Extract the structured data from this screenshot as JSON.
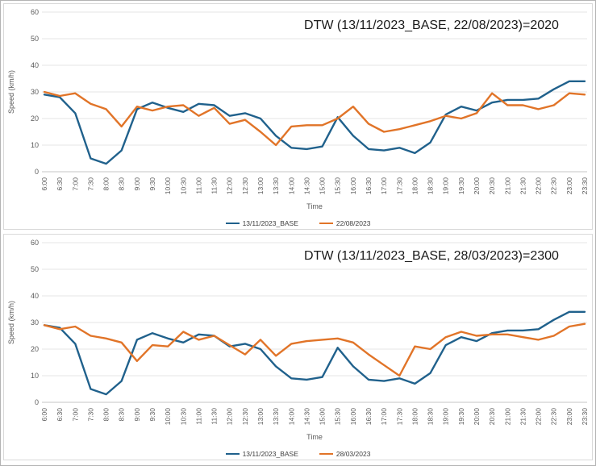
{
  "page": {
    "background": "#ffffff"
  },
  "chart_style": {
    "grid_color": "#e6e6e6",
    "axis_color": "#c6c6c6",
    "tick_color": "#595959",
    "title_color": "#1a1a1a",
    "legend_text_color": "#404040",
    "base_series_color": "#20618c",
    "comparison_series_color": "#e17428"
  },
  "chart_data": [
    {
      "type": "line",
      "title": "DTW (13/11/2023_BASE, 22/08/2023)=2020",
      "xlabel": "Time",
      "ylabel": "Speed (km/h)",
      "ylim": [
        0,
        60
      ],
      "y_ticks": [
        0,
        10,
        20,
        30,
        40,
        50,
        60
      ],
      "grid": true,
      "legend_position": "bottom",
      "categories": [
        "6:00",
        "6:30",
        "7:00",
        "7:30",
        "8:00",
        "8:30",
        "9:00",
        "9:30",
        "10:00",
        "10:30",
        "11:00",
        "11:30",
        "12:00",
        "12:30",
        "13:00",
        "13:30",
        "14:00",
        "14:30",
        "15:00",
        "15:30",
        "16:00",
        "16:30",
        "17:00",
        "17:30",
        "18:00",
        "18:30",
        "19:00",
        "19:30",
        "20:00",
        "20:30",
        "21:00",
        "21:30",
        "22:00",
        "22:30",
        "23:00",
        "23:30"
      ],
      "series": [
        {
          "name": "13/11/2023_BASE",
          "color": "#20618c",
          "values": [
            29,
            28,
            22,
            5,
            3,
            8,
            23.5,
            26,
            24,
            22.5,
            25.5,
            25,
            21,
            22,
            20,
            13.5,
            9,
            8.5,
            9.5,
            20.5,
            13.5,
            8.5,
            8,
            9,
            7,
            11,
            21.5,
            24.5,
            23,
            26,
            27,
            27,
            27.5,
            31,
            34,
            34
          ]
        },
        {
          "name": "22/08/2023",
          "color": "#e17428",
          "values": [
            30,
            28.5,
            29.5,
            25.5,
            23.5,
            17,
            24.5,
            23,
            24.5,
            25,
            21,
            24,
            18,
            19.5,
            15,
            10,
            17,
            17.5,
            17.5,
            20,
            24.5,
            18,
            15,
            16,
            17.5,
            19,
            21,
            20,
            22,
            29.5,
            25,
            25,
            23.5,
            25,
            29.5,
            29
          ]
        }
      ]
    },
    {
      "type": "line",
      "title": "DTW (13/11/2023_BASE, 28/03/2023)=2300",
      "xlabel": "Time",
      "ylabel": "Speed (km/h)",
      "ylim": [
        0,
        60
      ],
      "y_ticks": [
        0,
        10,
        20,
        30,
        40,
        50,
        60
      ],
      "grid": true,
      "legend_position": "bottom",
      "categories": [
        "6:00",
        "6:30",
        "7:00",
        "7:30",
        "8:00",
        "8:30",
        "9:00",
        "9:30",
        "10:00",
        "10:30",
        "11:00",
        "11:30",
        "12:00",
        "12:30",
        "13:00",
        "13:30",
        "14:00",
        "14:30",
        "15:00",
        "15:30",
        "16:00",
        "16:30",
        "17:00",
        "17:30",
        "18:00",
        "18:30",
        "19:00",
        "19:30",
        "20:00",
        "20:30",
        "21:00",
        "21:30",
        "22:00",
        "22:30",
        "23:00",
        "23:30"
      ],
      "series": [
        {
          "name": "13/11/2023_BASE",
          "color": "#20618c",
          "values": [
            29,
            28,
            22,
            5,
            3,
            8,
            23.5,
            26,
            24,
            22.5,
            25.5,
            25,
            21,
            22,
            20,
            13.5,
            9,
            8.5,
            9.5,
            20.5,
            13.5,
            8.5,
            8,
            9,
            7,
            11,
            21.5,
            24.5,
            23,
            26,
            27,
            27,
            27.5,
            31,
            34,
            34
          ]
        },
        {
          "name": "28/03/2023",
          "color": "#e17428",
          "values": [
            29,
            27.5,
            28.5,
            25,
            24,
            22.5,
            15.5,
            21.5,
            21,
            26.5,
            23.5,
            25,
            21.5,
            18,
            23.5,
            17.5,
            22,
            23,
            23.5,
            24,
            22.5,
            18,
            14,
            10,
            21,
            20,
            24.5,
            26.5,
            25,
            25.5,
            25.5,
            24.5,
            23.5,
            25,
            28.5,
            29.5
          ]
        }
      ]
    }
  ]
}
